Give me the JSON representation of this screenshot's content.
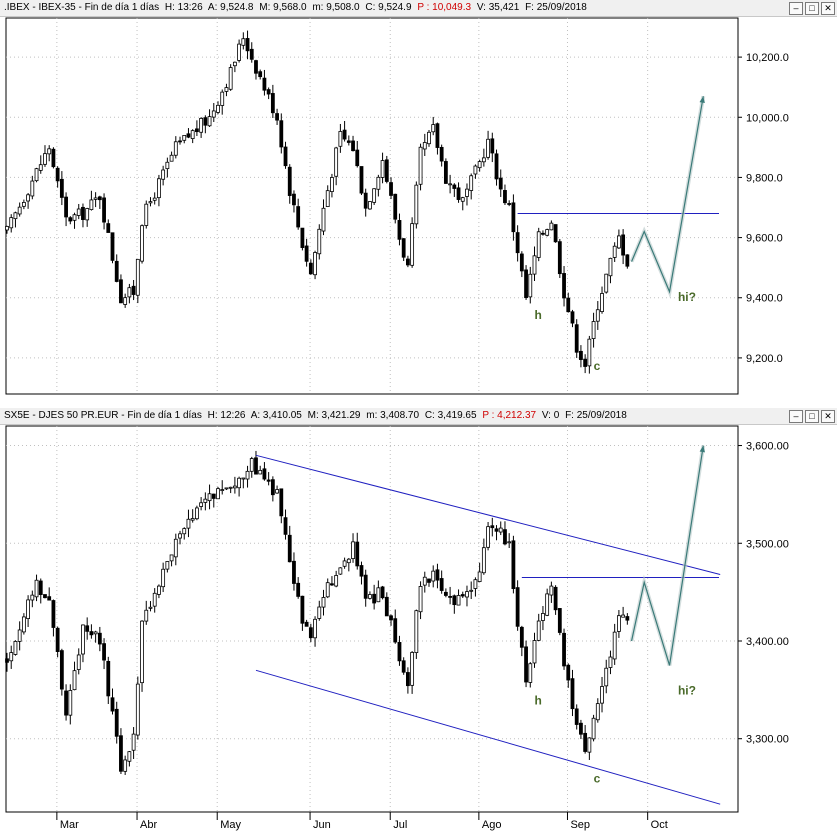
{
  "top": {
    "header": {
      "symbol": ".IBEX - IBEX-35 - Fin de día 1 días",
      "h": "H: 13:26",
      "a": "A: 9,524.8",
      "m": "M: 9,568.0",
      "mn": "m: 9,508.0",
      "c": "C: 9,524.9",
      "p": "P : 10,049.3",
      "v": "V: 35,421",
      "f": "F: 25/09/2018"
    },
    "window_buttons": [
      "–",
      "□",
      "✕"
    ],
    "annotations": {
      "h": "h",
      "c": "c",
      "hi": "hi?"
    }
  },
  "bottom": {
    "header": {
      "symbol": "SX5E - DJES 50 PR.EUR - Fin de día 1 días",
      "h": "H: 12:26",
      "a": "A: 3,410.05",
      "m": "M: 3,421.29",
      "mn": "m: 3,408.70",
      "c": "C: 3,419.65",
      "p": "P : 4,212.37",
      "v": "V: 0",
      "f": "F: 25/09/2018"
    },
    "window_buttons": [
      "–",
      "□",
      "✕"
    ],
    "annotations": {
      "h": "h",
      "c": "c",
      "hi": "hi?"
    }
  },
  "colors": {
    "candle": "#000000",
    "projection": "#3a7a78",
    "annotation": "#4a6a2a",
    "line": "#2020c0"
  },
  "chart_data": [
    {
      "type": "candlestick",
      "title": ".IBEX - IBEX-35",
      "ylim": [
        9080,
        10330
      ],
      "y_ticks": [
        9200,
        9400,
        9600,
        9800,
        10000,
        10200
      ],
      "y_tick_labels": [
        "9,200.0",
        "9,400.0",
        "9,600.0",
        "9,800.0",
        "10,000.0",
        "10,200.0"
      ],
      "x_labels": [
        "Mar",
        "Abr",
        "May",
        "Jun",
        "Jul",
        "Ago",
        "Sep",
        "Oct"
      ],
      "anchors": [
        [
          0,
          9620
        ],
        [
          7,
          9820
        ],
        [
          10,
          9900
        ],
        [
          14,
          9660
        ],
        [
          18,
          9680
        ],
        [
          22,
          9740
        ],
        [
          27,
          9400
        ],
        [
          30,
          9420
        ],
        [
          32,
          9660
        ],
        [
          40,
          9900
        ],
        [
          48,
          10000
        ],
        [
          53,
          10150
        ],
        [
          56,
          10270
        ],
        [
          58,
          10200
        ],
        [
          64,
          10000
        ],
        [
          67,
          9760
        ],
        [
          70,
          9580
        ],
        [
          72,
          9480
        ],
        [
          75,
          9700
        ],
        [
          79,
          9940
        ],
        [
          82,
          9900
        ],
        [
          85,
          9700
        ],
        [
          89,
          9860
        ],
        [
          93,
          9600
        ],
        [
          95,
          9500
        ],
        [
          98,
          9880
        ],
        [
          101,
          9960
        ],
        [
          104,
          9800
        ],
        [
          108,
          9720
        ],
        [
          112,
          9850
        ],
        [
          114,
          9920
        ],
        [
          117,
          9760
        ],
        [
          119,
          9700
        ],
        [
          121,
          9560
        ],
        [
          123,
          9400
        ],
        [
          126,
          9600
        ],
        [
          129,
          9660
        ],
        [
          132,
          9420
        ],
        [
          135,
          9240
        ],
        [
          137,
          9180
        ],
        [
          140,
          9380
        ],
        [
          143,
          9520
        ],
        [
          145,
          9600
        ],
        [
          147,
          9520
        ]
      ],
      "resistance": 9680,
      "projection": [
        [
          148,
          9520
        ],
        [
          151,
          9620
        ],
        [
          157,
          9420
        ],
        [
          165,
          10070
        ]
      ],
      "annotations": {
        "h": [
          125,
          9330
        ],
        "c": [
          139,
          9160
        ],
        "hi": [
          159,
          9390
        ]
      }
    },
    {
      "type": "candlestick",
      "title": "SX5E - DJES 50 PR.EUR",
      "ylim": [
        3225,
        3620
      ],
      "y_ticks": [
        3300,
        3400,
        3500,
        3600
      ],
      "y_tick_labels": [
        "3,300.00",
        "3,400.00",
        "3,500.00",
        "3,600.00"
      ],
      "x_labels": [
        "Mar",
        "Abr",
        "May",
        "Jun",
        "Jul",
        "Ago",
        "Sep",
        "Oct"
      ],
      "anchors": [
        [
          0,
          3380
        ],
        [
          7,
          3460
        ],
        [
          10,
          3440
        ],
        [
          14,
          3330
        ],
        [
          18,
          3410
        ],
        [
          22,
          3400
        ],
        [
          27,
          3270
        ],
        [
          30,
          3300
        ],
        [
          32,
          3420
        ],
        [
          40,
          3500
        ],
        [
          48,
          3550
        ],
        [
          53,
          3560
        ],
        [
          56,
          3570
        ],
        [
          58,
          3580
        ],
        [
          64,
          3550
        ],
        [
          67,
          3480
        ],
        [
          70,
          3420
        ],
        [
          72,
          3400
        ],
        [
          75,
          3450
        ],
        [
          79,
          3470
        ],
        [
          82,
          3500
        ],
        [
          85,
          3440
        ],
        [
          89,
          3450
        ],
        [
          93,
          3380
        ],
        [
          95,
          3360
        ],
        [
          98,
          3460
        ],
        [
          101,
          3470
        ],
        [
          104,
          3440
        ],
        [
          108,
          3440
        ],
        [
          112,
          3470
        ],
        [
          114,
          3520
        ],
        [
          117,
          3510
        ],
        [
          119,
          3500
        ],
        [
          121,
          3420
        ],
        [
          123,
          3360
        ],
        [
          126,
          3420
        ],
        [
          129,
          3460
        ],
        [
          132,
          3380
        ],
        [
          135,
          3310
        ],
        [
          137,
          3290
        ],
        [
          140,
          3340
        ],
        [
          143,
          3380
        ],
        [
          145,
          3430
        ],
        [
          147,
          3420
        ]
      ],
      "resistance": 3465,
      "channel_upper": [
        [
          59,
          3590
        ],
        [
          169,
          3468
        ]
      ],
      "channel_lower": [
        [
          59,
          3370
        ],
        [
          169,
          3233
        ]
      ],
      "projection": [
        [
          148,
          3400
        ],
        [
          151,
          3460
        ],
        [
          157,
          3375
        ],
        [
          165,
          3600
        ]
      ],
      "annotations": {
        "h": [
          125,
          3335
        ],
        "c": [
          139,
          3255
        ],
        "hi": [
          159,
          3345
        ]
      }
    }
  ]
}
